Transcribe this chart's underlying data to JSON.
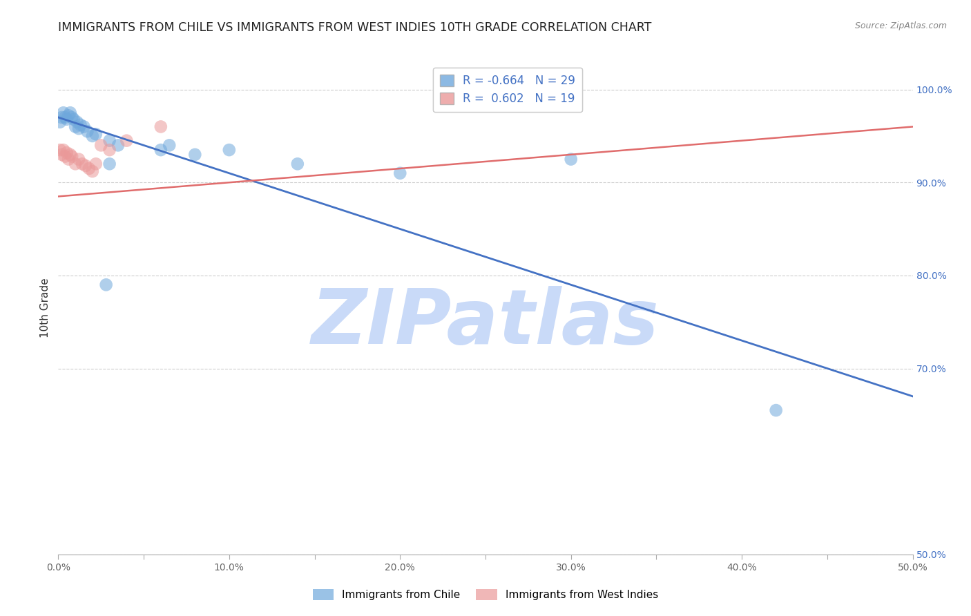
{
  "title": "IMMIGRANTS FROM CHILE VS IMMIGRANTS FROM WEST INDIES 10TH GRADE CORRELATION CHART",
  "source": "Source: ZipAtlas.com",
  "ylabel": "10th Grade",
  "legend_label_chile": "Immigrants from Chile",
  "legend_label_wi": "Immigrants from West Indies",
  "R_chile": -0.664,
  "N_chile": 29,
  "R_wi": 0.602,
  "N_wi": 19,
  "xlim": [
    0.0,
    0.5
  ],
  "ylim": [
    0.5,
    1.03
  ],
  "xticks": [
    0.0,
    0.05,
    0.1,
    0.15,
    0.2,
    0.25,
    0.3,
    0.35,
    0.4,
    0.45,
    0.5
  ],
  "xtick_labels": [
    "0.0%",
    "",
    "10.0%",
    "",
    "20.0%",
    "",
    "30.0%",
    "",
    "40.0%",
    "",
    "50.0%"
  ],
  "yticks_right": [
    0.5,
    0.7,
    0.8,
    0.9,
    1.0
  ],
  "ytick_labels_right": [
    "50.0%",
    "70.0%",
    "80.0%",
    "90.0%",
    "100.0%"
  ],
  "yticks_grid": [
    0.5,
    0.7,
    0.8,
    0.9,
    1.0
  ],
  "color_chile": "#6fa8dc",
  "color_wi": "#ea9999",
  "color_line_chile": "#4472c4",
  "color_line_wi": "#e06c6c",
  "background_color": "#ffffff",
  "watermark_text": "ZIPatlas",
  "watermark_color": "#c9daf8",
  "chile_scatter_x": [
    0.001,
    0.002,
    0.003,
    0.004,
    0.005,
    0.006,
    0.007,
    0.008,
    0.009,
    0.01,
    0.011,
    0.012,
    0.013,
    0.015,
    0.017,
    0.02,
    0.022,
    0.03,
    0.035,
    0.06,
    0.065,
    0.08,
    0.1,
    0.03,
    0.14,
    0.2,
    0.3,
    0.42,
    0.028
  ],
  "chile_scatter_y": [
    0.965,
    0.97,
    0.975,
    0.97,
    0.968,
    0.972,
    0.975,
    0.97,
    0.968,
    0.96,
    0.965,
    0.958,
    0.962,
    0.96,
    0.955,
    0.95,
    0.952,
    0.945,
    0.94,
    0.935,
    0.94,
    0.93,
    0.935,
    0.92,
    0.92,
    0.91,
    0.925,
    0.655,
    0.79
  ],
  "wi_scatter_x": [
    0.001,
    0.002,
    0.003,
    0.004,
    0.005,
    0.006,
    0.007,
    0.008,
    0.01,
    0.012,
    0.014,
    0.016,
    0.018,
    0.02,
    0.022,
    0.025,
    0.03,
    0.04,
    0.06
  ],
  "wi_scatter_y": [
    0.935,
    0.93,
    0.935,
    0.928,
    0.932,
    0.925,
    0.93,
    0.928,
    0.92,
    0.925,
    0.92,
    0.918,
    0.915,
    0.912,
    0.92,
    0.94,
    0.935,
    0.945,
    0.96
  ],
  "chile_line_x": [
    0.0,
    0.5
  ],
  "chile_line_y": [
    0.97,
    0.67
  ],
  "wi_line_x": [
    0.0,
    0.5
  ],
  "wi_line_y": [
    0.885,
    0.96
  ]
}
